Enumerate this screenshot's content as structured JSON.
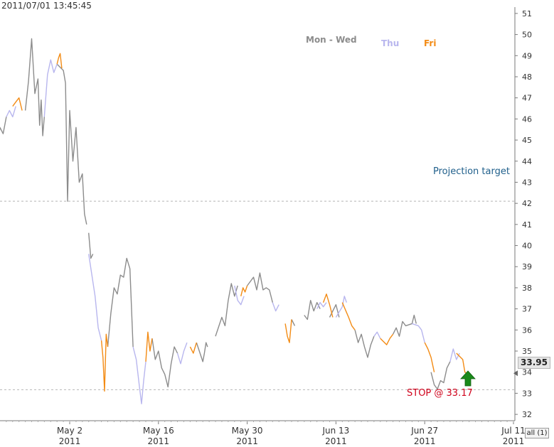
{
  "timestamp": "2011/07/01 13:45:45",
  "legend": [
    {
      "label": "Mon - Wed",
      "color": "#8c8c8c"
    },
    {
      "label": "Thu",
      "color": "#b8b6ee"
    },
    {
      "label": "Fri",
      "color": "#f38b14"
    }
  ],
  "annotations": {
    "projection_label": "Projection target",
    "projection_value": 42.1,
    "stop_label": "STOP @ 33.17",
    "stop_value": 33.17,
    "stop_color": "#d0021b",
    "projection_color": "#1f5f8b"
  },
  "current_price": "33.95",
  "current_value": 33.95,
  "all_button": "all (1)",
  "chart_data": {
    "type": "line",
    "title": "",
    "xlabel": "",
    "ylabel": "",
    "ylim": [
      31.7,
      51.3
    ],
    "y_ticks": [
      32,
      33,
      34,
      35,
      36,
      37,
      38,
      39,
      40,
      41,
      42,
      43,
      44,
      45,
      46,
      47,
      48,
      49,
      50,
      51
    ],
    "x_ticks": [
      {
        "label": "May 2",
        "year": "2011"
      },
      {
        "label": "May 16",
        "year": "2011"
      },
      {
        "label": "May 30",
        "year": "2011"
      },
      {
        "label": "Jun 13",
        "year": "2011"
      },
      {
        "label": "Jun 27",
        "year": "2011"
      },
      {
        "label": "Jul 11",
        "year": "2011"
      }
    ],
    "grid": "off",
    "legend_position": "top-center",
    "series": [
      {
        "name": "Mon - Wed",
        "color": "#8c8c8c",
        "segments": [
          [
            [
              "2011-04-20",
              43.3
            ],
            [
              "2011-04-20",
              44.4
            ],
            [
              "2011-04-21",
              45.6
            ],
            [
              "2011-04-21",
              45.3
            ],
            [
              "2011-04-22",
              46.1
            ]
          ],
          [
            [
              "2011-04-25",
              46.4
            ],
            [
              "2011-04-25",
              47.8
            ],
            [
              "2011-04-26",
              49.8
            ],
            [
              "2011-04-26",
              47.2
            ],
            [
              "2011-04-27",
              47.9
            ],
            [
              "2011-04-27",
              45.7
            ],
            [
              "2011-04-27",
              46.9
            ],
            [
              "2011-04-27",
              45.2
            ],
            [
              "2011-04-28",
              46.1
            ]
          ],
          [
            [
              "2011-04-30",
              48.6
            ],
            [
              "2011-05-01",
              48.3
            ],
            [
              "2011-05-01",
              47.7
            ],
            [
              "2011-05-01",
              42.1
            ],
            [
              "2011-05-02",
              46.4
            ],
            [
              "2011-05-02",
              44.0
            ],
            [
              "2011-05-03",
              45.6
            ],
            [
              "2011-05-03",
              43.0
            ],
            [
              "2011-05-04",
              43.4
            ],
            [
              "2011-05-04",
              41.5
            ],
            [
              "2011-05-04",
              41.0
            ]
          ],
          [
            [
              "2011-05-05",
              40.6
            ],
            [
              "2011-05-05",
              39.4
            ],
            [
              "2011-05-05",
              39.6
            ]
          ],
          [
            [
              "2011-05-08",
              35.2
            ],
            [
              "2011-05-08",
              36.8
            ],
            [
              "2011-05-09",
              38.0
            ],
            [
              "2011-05-09",
              37.7
            ],
            [
              "2011-05-10",
              38.6
            ],
            [
              "2011-05-10",
              38.5
            ],
            [
              "2011-05-11",
              39.4
            ],
            [
              "2011-05-11",
              38.9
            ],
            [
              "2011-05-12",
              35.2
            ]
          ],
          [
            [
              "2011-05-15",
              35.6
            ],
            [
              "2011-05-15",
              34.6
            ],
            [
              "2011-05-16",
              35.0
            ],
            [
              "2011-05-16",
              34.2
            ],
            [
              "2011-05-17",
              33.9
            ],
            [
              "2011-05-17",
              33.3
            ],
            [
              "2011-05-18",
              34.4
            ],
            [
              "2011-05-18",
              35.2
            ],
            [
              "2011-05-19",
              34.9
            ]
          ],
          [
            [
              "2011-05-22",
              35.4
            ],
            [
              "2011-05-23",
              34.5
            ],
            [
              "2011-05-23",
              34.9
            ],
            [
              "2011-05-23",
              35.4
            ],
            [
              "2011-05-23",
              35.2
            ]
          ],
          [
            [
              "2011-05-25",
              35.7
            ],
            [
              "2011-05-26",
              36.6
            ],
            [
              "2011-05-26",
              36.2
            ],
            [
              "2011-05-27",
              37.4
            ],
            [
              "2011-05-27",
              38.2
            ],
            [
              "2011-05-28",
              37.6
            ],
            [
              "2011-05-28",
              38.1
            ]
          ],
          [
            [
              "2011-05-30",
              38.1
            ],
            [
              "2011-05-31",
              38.5
            ],
            [
              "2011-05-31",
              37.9
            ],
            [
              "2011-06-01",
              38.7
            ],
            [
              "2011-06-01",
              37.9
            ],
            [
              "2011-06-02",
              38.0
            ],
            [
              "2011-06-02",
              37.9
            ],
            [
              "2011-06-03",
              37.3
            ]
          ],
          [
            [
              "2011-06-06",
              36.5
            ],
            [
              "2011-06-06",
              36.2
            ]
          ],
          [
            [
              "2011-06-08",
              36.7
            ],
            [
              "2011-06-08",
              36.5
            ],
            [
              "2011-06-09",
              37.4
            ],
            [
              "2011-06-09",
              36.9
            ],
            [
              "2011-06-10",
              37.3
            ],
            [
              "2011-06-10",
              37.0
            ]
          ],
          [
            [
              "2011-06-12",
              36.6
            ],
            [
              "2011-06-13",
              37.2
            ],
            [
              "2011-06-13",
              36.6
            ]
          ],
          [
            [
              "2011-06-16",
              36.0
            ],
            [
              "2011-06-16",
              35.4
            ],
            [
              "2011-06-17",
              35.8
            ],
            [
              "2011-06-17",
              35.2
            ],
            [
              "2011-06-18",
              34.7
            ],
            [
              "2011-06-18",
              35.3
            ],
            [
              "2011-06-19",
              35.7
            ]
          ],
          [
            [
              "2011-06-22",
              35.8
            ],
            [
              "2011-06-22",
              36.1
            ],
            [
              "2011-06-23",
              35.7
            ],
            [
              "2011-06-23",
              36.4
            ],
            [
              "2011-06-24",
              36.2
            ],
            [
              "2011-06-25",
              36.3
            ],
            [
              "2011-06-25",
              36.7
            ],
            [
              "2011-06-25",
              36.3
            ]
          ],
          [
            [
              "2011-06-28",
              34.0
            ],
            [
              "2011-06-28",
              33.4
            ],
            [
              "2011-06-29",
              33.2
            ],
            [
              "2011-06-29",
              33.6
            ],
            [
              "2011-06-30",
              33.5
            ],
            [
              "2011-06-30",
              34.2
            ],
            [
              "2011-07-01",
              34.5
            ]
          ]
        ]
      },
      {
        "name": "Thu",
        "color": "#b8b6ee",
        "segments": [
          [
            [
              "2011-04-22",
              46.1
            ],
            [
              "2011-04-22",
              46.4
            ],
            [
              "2011-04-23",
              46.1
            ],
            [
              "2011-04-23",
              46.6
            ]
          ],
          [
            [
              "2011-04-28",
              46.1
            ],
            [
              "2011-04-28",
              48.1
            ],
            [
              "2011-04-29",
              48.8
            ],
            [
              "2011-04-29",
              48.2
            ],
            [
              "2011-04-30",
              48.6
            ]
          ],
          [
            [
              "2011-05-05",
              39.6
            ],
            [
              "2011-05-06",
              37.6
            ],
            [
              "2011-05-06",
              36.1
            ],
            [
              "2011-05-07",
              35.5
            ]
          ],
          [
            [
              "2011-05-12",
              35.2
            ],
            [
              "2011-05-12",
              34.6
            ],
            [
              "2011-05-13",
              33.3
            ],
            [
              "2011-05-13",
              32.5
            ],
            [
              "2011-05-13",
              33.6
            ],
            [
              "2011-05-14",
              34.5
            ]
          ],
          [
            [
              "2011-05-19",
              34.9
            ],
            [
              "2011-05-19",
              34.4
            ],
            [
              "2011-05-20",
              35.0
            ],
            [
              "2011-05-20",
              35.4
            ]
          ],
          [
            [
              "2011-05-28",
              38.1
            ],
            [
              "2011-05-28",
              37.4
            ],
            [
              "2011-05-29",
              37.2
            ],
            [
              "2011-05-29",
              37.6
            ]
          ],
          [
            [
              "2011-06-03",
              37.3
            ],
            [
              "2011-06-03",
              36.9
            ],
            [
              "2011-06-04",
              37.2
            ]
          ],
          [
            [
              "2011-06-10",
              37.0
            ],
            [
              "2011-06-10",
              37.3
            ],
            [
              "2011-06-11",
              37.1
            ],
            [
              "2011-06-11",
              37.3
            ]
          ],
          [
            [
              "2011-06-13",
              36.6
            ],
            [
              "2011-06-14",
              37.1
            ],
            [
              "2011-06-14",
              37.6
            ],
            [
              "2011-06-14",
              37.3
            ]
          ],
          [
            [
              "2011-06-19",
              35.7
            ],
            [
              "2011-06-19",
              35.9
            ],
            [
              "2011-06-20",
              35.6
            ]
          ],
          [
            [
              "2011-06-25",
              36.3
            ],
            [
              "2011-06-26",
              36.2
            ],
            [
              "2011-06-26",
              36.0
            ],
            [
              "2011-06-27",
              35.4
            ]
          ],
          [
            [
              "2011-07-01",
              34.5
            ],
            [
              "2011-07-01",
              35.1
            ],
            [
              "2011-07-02",
              34.6
            ],
            [
              "2011-07-02",
              34.9
            ]
          ]
        ]
      },
      {
        "name": "Fri",
        "color": "#f38b14",
        "segments": [
          [
            [
              "2011-04-23",
              46.6
            ],
            [
              "2011-04-23",
              46.8
            ],
            [
              "2011-04-24",
              47.0
            ],
            [
              "2011-04-24",
              46.4
            ]
          ],
          [
            [
              "2011-04-30",
              48.6
            ],
            [
              "2011-04-30",
              48.9
            ],
            [
              "2011-04-30",
              49.1
            ],
            [
              "2011-04-30",
              48.4
            ]
          ],
          [
            [
              "2011-05-07",
              35.5
            ],
            [
              "2011-05-07",
              34.7
            ],
            [
              "2011-05-07",
              33.1
            ],
            [
              "2011-05-07",
              35.8
            ],
            [
              "2011-05-08",
              35.2
            ]
          ],
          [
            [
              "2011-05-14",
              34.5
            ],
            [
              "2011-05-14",
              35.9
            ],
            [
              "2011-05-14",
              35.0
            ],
            [
              "2011-05-15",
              35.6
            ]
          ],
          [
            [
              "2011-05-21",
              35.2
            ],
            [
              "2011-05-21",
              34.9
            ],
            [
              "2011-05-22",
              35.4
            ]
          ],
          [
            [
              "2011-05-29",
              37.6
            ],
            [
              "2011-05-29",
              38.0
            ],
            [
              "2011-05-29",
              37.8
            ],
            [
              "2011-05-30",
              38.1
            ]
          ],
          [
            [
              "2011-06-05",
              36.3
            ],
            [
              "2011-06-05",
              35.7
            ],
            [
              "2011-06-05",
              35.4
            ],
            [
              "2011-06-06",
              36.5
            ]
          ],
          [
            [
              "2011-06-11",
              37.3
            ],
            [
              "2011-06-11",
              37.7
            ],
            [
              "2011-06-12",
              37.2
            ],
            [
              "2011-06-12",
              36.6
            ]
          ],
          [
            [
              "2011-06-14",
              37.3
            ],
            [
              "2011-06-15",
              36.6
            ],
            [
              "2011-06-15",
              36.2
            ],
            [
              "2011-06-16",
              36.0
            ]
          ],
          [
            [
              "2011-06-20",
              35.6
            ],
            [
              "2011-06-21",
              35.3
            ],
            [
              "2011-06-21",
              35.6
            ],
            [
              "2011-06-22",
              35.8
            ]
          ],
          [
            [
              "2011-06-27",
              35.4
            ],
            [
              "2011-06-27",
              35.1
            ],
            [
              "2011-06-28",
              34.7
            ],
            [
              "2011-06-28",
              34.0
            ]
          ],
          [
            [
              "2011-07-02",
              34.9
            ],
            [
              "2011-07-03",
              34.6
            ],
            [
              "2011-07-03",
              34.0
            ],
            [
              "2011-07-03",
              33.95
            ]
          ]
        ]
      }
    ]
  }
}
